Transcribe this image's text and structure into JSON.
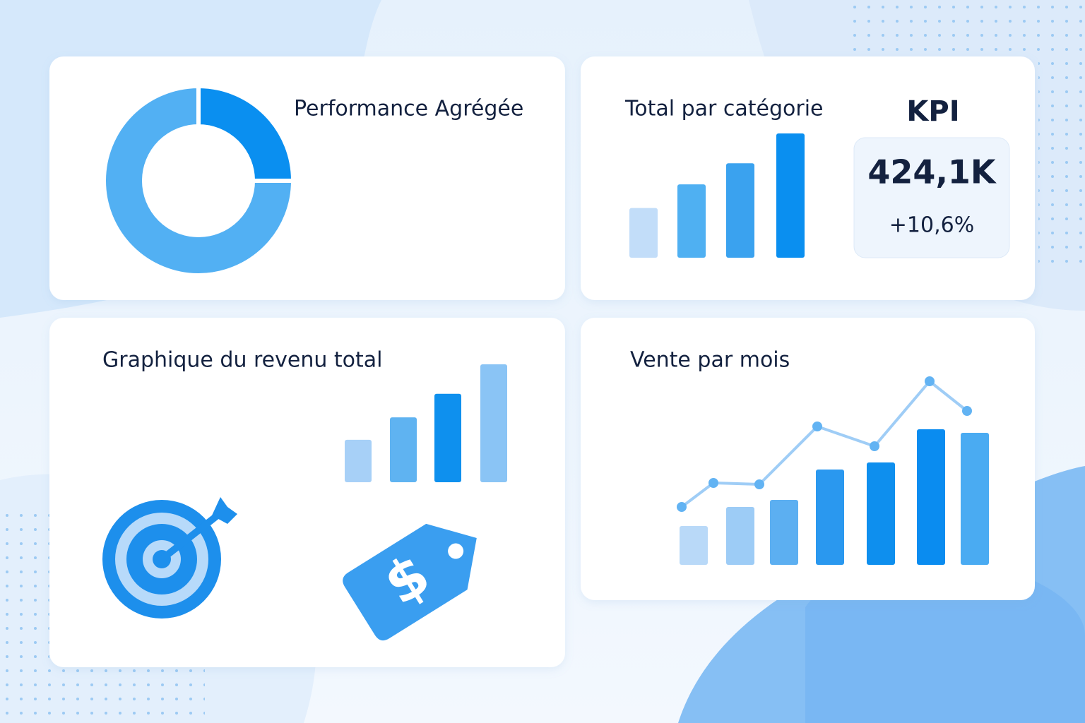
{
  "chart_data": [
    {
      "type": "donut",
      "title": "Performance Agrégée",
      "values": [
        25,
        75
      ],
      "colors": [
        "#0a8ff0",
        "#52b0f3"
      ]
    },
    {
      "type": "bar",
      "title": "Total par catégorie",
      "values": [
        40,
        59,
        76,
        100
      ],
      "colors": [
        "#c2ddf9",
        "#4fb0f2",
        "#3aa2ef",
        "#0a8ff0"
      ]
    },
    {
      "type": "bar",
      "title": "Graphique du revenu total",
      "values": [
        36,
        55,
        75,
        100
      ],
      "colors": [
        "#a7d0f7",
        "#5fb3f1",
        "#0e90ee",
        "#8ac4f5"
      ]
    },
    {
      "type": "combo",
      "title": "Vente par mois",
      "series": [
        {
          "type": "bar",
          "values": [
            55,
            82,
            92,
            135,
            145,
            192,
            187
          ],
          "colors": [
            "#b9d9f8",
            "#9dccf6",
            "#5caff1",
            "#2a98ef",
            "#0e8fee",
            "#0a8cf0",
            "#4aabf2"
          ]
        },
        {
          "type": "line",
          "values": [
            82,
            116,
            114,
            196,
            168,
            260,
            218
          ],
          "color": "#9fcdf6"
        }
      ]
    }
  ],
  "kpi": {
    "title": "KPI",
    "value": "424,1K",
    "change": "+10,6%"
  }
}
